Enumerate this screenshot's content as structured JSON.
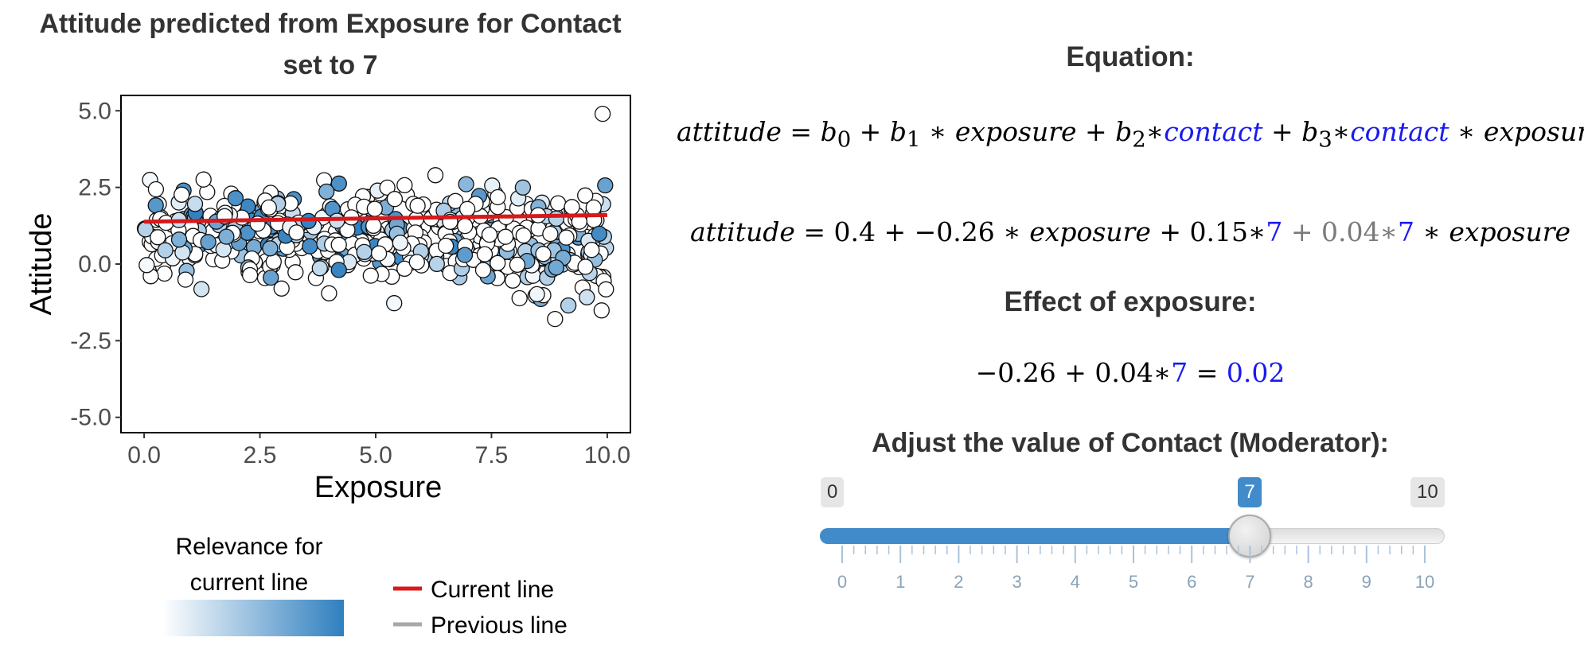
{
  "plot": {
    "title_line1": "Attitude predicted from Exposure for Contact",
    "title_line2": "set to 7",
    "legend_gradient_title_line1": "Relevance for",
    "legend_gradient_title_line2": "current line",
    "legend_current_line": "Current line",
    "legend_previous_line": "Previous line"
  },
  "chart_data": {
    "type": "scatter",
    "xlabel": "Exposure",
    "ylabel": "Attitude",
    "xlim": [
      -0.5,
      10.5
    ],
    "ylim": [
      -5.5,
      5.5
    ],
    "x_ticks": [
      "0.0",
      "2.5",
      "5.0",
      "7.5",
      "10.0"
    ],
    "y_ticks": [
      "5.0",
      "2.5",
      "0.0",
      "-2.5",
      "-5.0"
    ],
    "grid": false,
    "n_points": 500,
    "point_fill_gradient": [
      "#ffffff",
      "#2f7fbf"
    ],
    "series": [
      {
        "name": "Current line",
        "type": "line",
        "color": "#d7191c",
        "x": [
          0,
          10
        ],
        "y": [
          1.38,
          1.6
        ]
      }
    ],
    "notes": "Scatter of ~500 observations; x spread 0-10, y roughly -3.2 to 4.9; fill colour encodes relevance for current line (white = low, blue = high)."
  },
  "equation": {
    "heading": "Equation:",
    "line1": {
      "lhs": "attitude",
      "eq": " = ",
      "b0": "b",
      "b0_sub": "0",
      "plus1": " + ",
      "b1": "b",
      "b1_sub": "1",
      "star1": " ∗ ",
      "exposure1": "exposure",
      "plus2": " + ",
      "b2": "b",
      "b2_sub": "2",
      "star2": "∗",
      "contact1": "contact",
      "plus3": " + ",
      "b3": "b",
      "b3_sub": "3",
      "star3": "∗",
      "contact2": "contact",
      "star4": " ∗ ",
      "exposure2": "exposure"
    },
    "line2": {
      "lhs": "attitude",
      "eq": " = ",
      "c0": "0.4",
      "plus1": " + ",
      "c1": "−0.26",
      "star1": " ∗ ",
      "exposure1": "exposure",
      "plus2": " + ",
      "c2": "0.15",
      "star2": "∗",
      "m1": "7",
      "plus3": " + ",
      "c3": "0.04",
      "star3": "∗",
      "m2": "7",
      "star4": " ∗ ",
      "exposure2": "exposure"
    }
  },
  "effect": {
    "heading": "Effect of exposure:",
    "b1": "−0.26",
    "plus": " + ",
    "b3": "0.04",
    "star": "∗",
    "m": "7",
    "eq": " = ",
    "result": "0.02"
  },
  "slider": {
    "heading": "Adjust the value of Contact (Moderator):",
    "min_label": "0",
    "max_label": "10",
    "value_label": "7",
    "min": 0,
    "max": 10,
    "value": 7,
    "tick_labels": [
      "0",
      "1",
      "2",
      "3",
      "4",
      "5",
      "6",
      "7",
      "8",
      "9",
      "10"
    ],
    "fill_color": "#428bca"
  }
}
